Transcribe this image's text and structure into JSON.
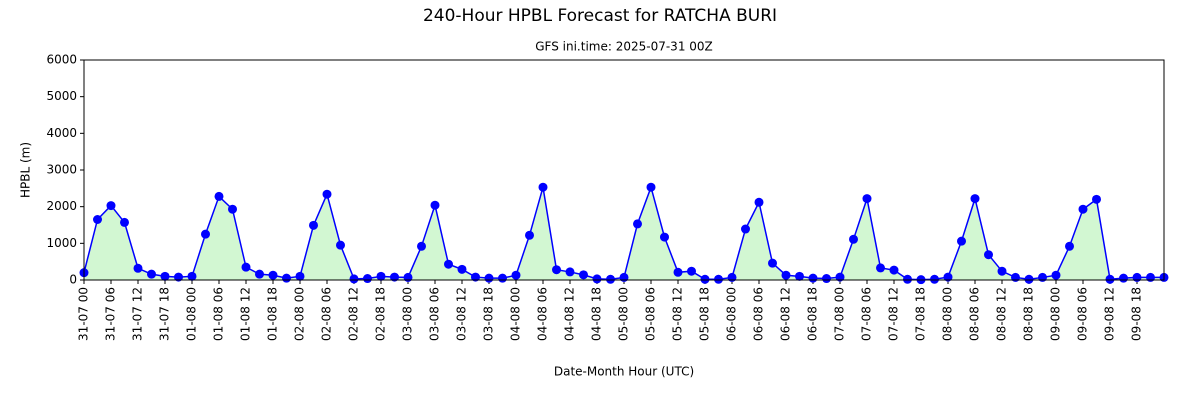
{
  "chart_data": {
    "type": "line",
    "title": "240-Hour HPBL Forecast for RATCHA BURI",
    "subtitle": "GFS ini.time: 2025-07-31 00Z",
    "x_label": "Date-Month Hour (UTC)",
    "y_label": "HPBL (m)",
    "categories": [
      "31-07 00",
      null,
      "31-07 06",
      null,
      "31-07 12",
      null,
      "31-07 18",
      null,
      "01-08 00",
      null,
      "01-08 06",
      null,
      "01-08 12",
      null,
      "01-08 18",
      null,
      "02-08 00",
      null,
      "02-08 06",
      null,
      "02-08 12",
      null,
      "02-08 18",
      null,
      "03-08 00",
      null,
      "03-08 06",
      null,
      "03-08 12",
      null,
      "03-08 18",
      null,
      "04-08 00",
      null,
      "04-08 06",
      null,
      "04-08 12",
      null,
      "04-08 18",
      null,
      "05-08 00",
      null,
      "05-08 06",
      null,
      "05-08 12",
      null,
      "05-08 18",
      null,
      "06-08 00",
      null,
      "06-08 06",
      null,
      "06-08 12",
      null,
      "06-08 18",
      null,
      "07-08 00",
      null,
      "07-08 06",
      null,
      "07-08 12",
      null,
      "07-08 18",
      null,
      "08-08 00",
      null,
      "08-08 06",
      null,
      "08-08 12",
      null,
      "08-08 18",
      null,
      "09-08 00",
      null,
      "09-08 06",
      null,
      "09-08 12",
      null,
      "09-08 18",
      null,
      null
    ],
    "series": [
      {
        "color": "#0000ff",
        "area_color": "#d2f7d2",
        "values": [
          200,
          1650,
          2030,
          1570,
          320,
          160,
          100,
          80,
          100,
          1250,
          2280,
          1930,
          350,
          160,
          130,
          50,
          100,
          1490,
          2340,
          950,
          30,
          40,
          100,
          80,
          70,
          920,
          2040,
          430,
          290,
          80,
          50,
          50,
          130,
          1220,
          2530,
          280,
          220,
          140,
          30,
          20,
          70,
          1530,
          2530,
          1170,
          210,
          240,
          20,
          20,
          70,
          1390,
          2120,
          460,
          130,
          100,
          50,
          40,
          80,
          1110,
          2220,
          330,
          270,
          20,
          10,
          20,
          80,
          1060,
          2220,
          690,
          240,
          70,
          20,
          70,
          130,
          920,
          1930,
          2200,
          20,
          50,
          70,
          70,
          70
        ]
      }
    ],
    "area": true,
    "ylim": [
      0,
      6000
    ],
    "yticks": [
      0,
      1000,
      2000,
      3000,
      4000,
      5000,
      6000
    ]
  }
}
